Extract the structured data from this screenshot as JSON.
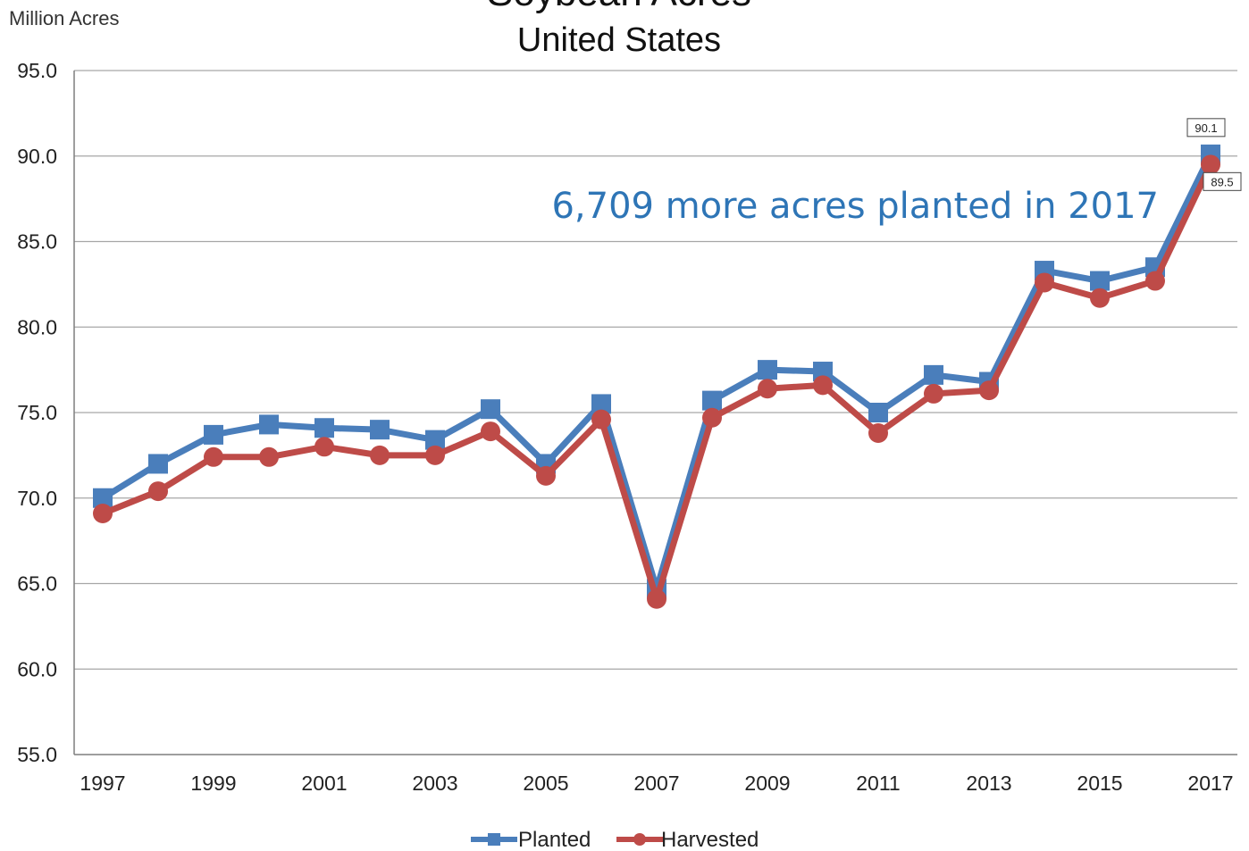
{
  "chart_data": {
    "type": "line",
    "title": "Soybean Acres",
    "subtitle": "United States",
    "ylabel": "Million Acres",
    "xlabel": "",
    "x": [
      1997,
      1998,
      1999,
      2000,
      2001,
      2002,
      2003,
      2004,
      2005,
      2006,
      2007,
      2008,
      2009,
      2010,
      2011,
      2012,
      2013,
      2014,
      2015,
      2016,
      2017
    ],
    "x_tick_labels": [
      "1997",
      "1999",
      "2001",
      "2003",
      "2005",
      "2007",
      "2009",
      "2011",
      "2013",
      "2015",
      "2017"
    ],
    "y_tick_labels": [
      "95.0",
      "90.0",
      "85.0",
      "80.0",
      "75.0",
      "70.0",
      "65.0",
      "60.0",
      "55.0"
    ],
    "ylim": [
      55,
      95
    ],
    "y_ticks": [
      55,
      60,
      65,
      70,
      75,
      80,
      85,
      90,
      95
    ],
    "grid": "horizontal",
    "legend_position": "bottom",
    "series": [
      {
        "name": "Planted",
        "color": "#4a7ebb",
        "marker": "square",
        "values": [
          70.0,
          72.0,
          73.7,
          74.3,
          74.1,
          74.0,
          73.4,
          75.2,
          72.0,
          75.5,
          64.7,
          75.7,
          77.5,
          77.4,
          75.0,
          77.2,
          76.8,
          83.3,
          82.7,
          83.5,
          90.1
        ]
      },
      {
        "name": "Harvested",
        "color": "#be4b48",
        "marker": "circle",
        "values": [
          69.1,
          70.4,
          72.4,
          72.4,
          73.0,
          72.5,
          72.5,
          73.9,
          71.3,
          74.6,
          64.1,
          74.7,
          76.4,
          76.6,
          73.8,
          76.1,
          76.3,
          82.6,
          81.7,
          82.7,
          89.5
        ]
      }
    ],
    "data_labels": [
      {
        "series": "Planted",
        "x": 2017,
        "text": "90.1"
      },
      {
        "series": "Harvested",
        "x": 2017,
        "text": "89.5"
      }
    ],
    "annotation": "6,709 more acres planted in 2017"
  }
}
